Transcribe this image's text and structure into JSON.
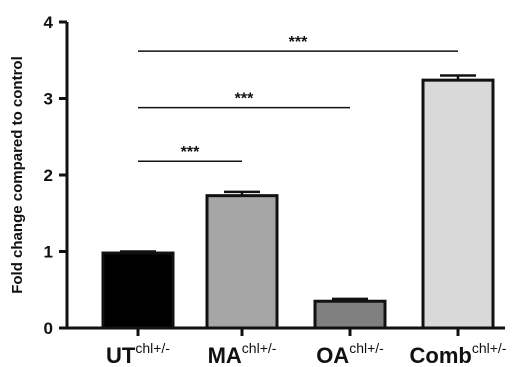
{
  "chart_data": {
    "type": "bar",
    "ylabel": "Fold change compared to control",
    "ylim": [
      0,
      4
    ],
    "yticks": [
      0,
      1,
      2,
      3,
      4
    ],
    "categories": [
      {
        "base": "UT",
        "sup": "chl+/-"
      },
      {
        "base": "MA",
        "sup": "chl+/-"
      },
      {
        "base": "OA",
        "sup": "chl+/-"
      },
      {
        "base": "Comb",
        "sup": "chl+/-"
      }
    ],
    "values": [
      0.98,
      1.73,
      0.35,
      3.24
    ],
    "errors": [
      0.02,
      0.05,
      0.03,
      0.06
    ],
    "colors": [
      "#000000",
      "#a6a6a6",
      "#808080",
      "#d9d9d9"
    ],
    "significance": [
      {
        "from": 0,
        "to": 1,
        "y": 2.18,
        "label": "***"
      },
      {
        "from": 0,
        "to": 2,
        "y": 2.88,
        "label": "***"
      },
      {
        "from": 0,
        "to": 3,
        "y": 3.62,
        "label": "***"
      }
    ]
  }
}
